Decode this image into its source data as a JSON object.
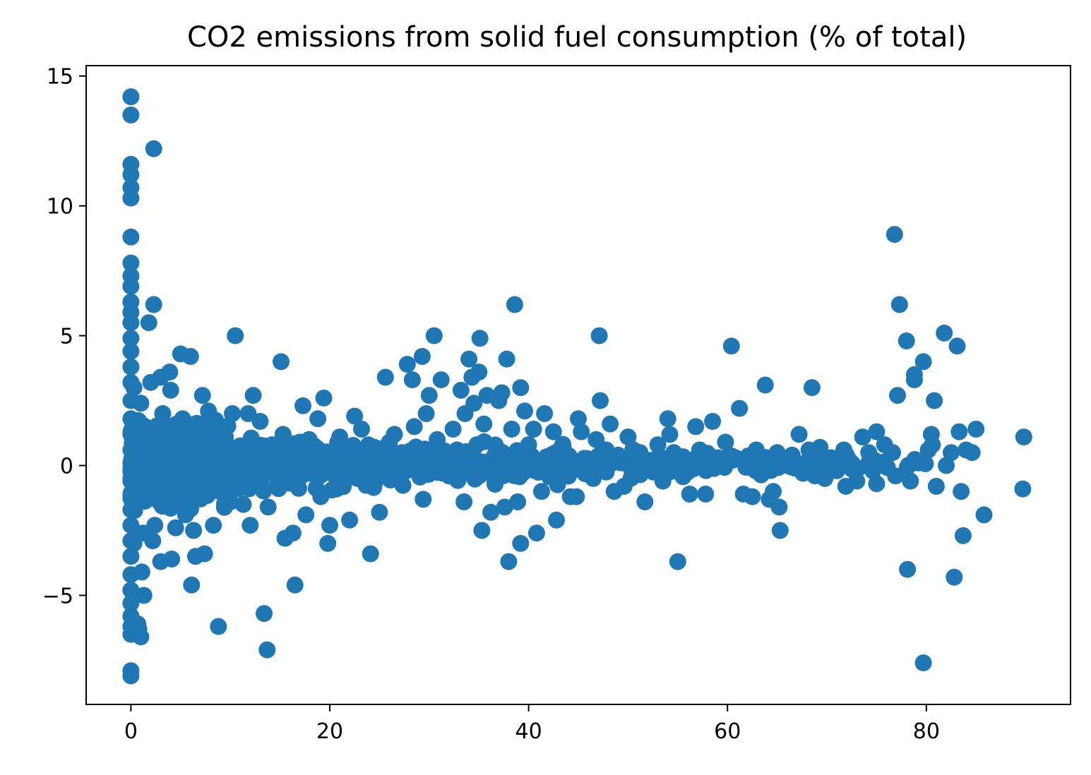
{
  "chart_data": {
    "type": "scatter",
    "title": "CO2 emissions from solid fuel consumption (% of total)",
    "xlabel": "",
    "ylabel": "",
    "xlim": [
      -4.5,
      94.5
    ],
    "ylim": [
      -9.2,
      15.4
    ],
    "x_ticks": [
      0,
      20,
      40,
      60,
      80
    ],
    "y_ticks": [
      15,
      10,
      5,
      0,
      -5
    ],
    "x_tick_labels": [
      "0",
      "20",
      "40",
      "60",
      "80"
    ],
    "y_tick_labels": [
      "15",
      "10",
      "5",
      "0",
      "−5"
    ],
    "grid": false,
    "legend": "none",
    "marker_color": "#1f77b4",
    "series": [
      {
        "points": [
          [
            0,
            14.2
          ],
          [
            0,
            13.5
          ],
          [
            0,
            11.6
          ],
          [
            0,
            11.2
          ],
          [
            0,
            10.7
          ],
          [
            0,
            10.3
          ],
          [
            0,
            8.8
          ],
          [
            0,
            7.8
          ],
          [
            0,
            7.3
          ],
          [
            0,
            6.9
          ],
          [
            0,
            6.3
          ],
          [
            0,
            5.9
          ],
          [
            0,
            5.5
          ],
          [
            0,
            4.9
          ],
          [
            0,
            4.4
          ],
          [
            0,
            3.8
          ],
          [
            0,
            3.2
          ],
          [
            0,
            2.5
          ],
          [
            0,
            1.8
          ],
          [
            0,
            1.2
          ],
          [
            0,
            0.6
          ],
          [
            0,
            0.1
          ],
          [
            0,
            -0.5
          ],
          [
            0,
            -1.1
          ],
          [
            0,
            -1.7
          ],
          [
            0,
            -2.3
          ],
          [
            0,
            -2.9
          ],
          [
            0,
            -3.5
          ],
          [
            0,
            -4.2
          ],
          [
            0,
            -4.8
          ],
          [
            0,
            -5.3
          ],
          [
            0,
            -5.8
          ],
          [
            0,
            -6.2
          ],
          [
            0,
            -6.5
          ],
          [
            0,
            -7.9
          ],
          [
            0,
            -8.1
          ],
          [
            0.3,
            3.0
          ],
          [
            0.3,
            -3.0
          ],
          [
            0.5,
            1.5
          ],
          [
            0.5,
            -1.2
          ],
          [
            0.6,
            0.4
          ],
          [
            0.7,
            -6.1
          ],
          [
            0.8,
            -6.3
          ],
          [
            1.0,
            -6.6
          ],
          [
            1.1,
            -4.1
          ],
          [
            1.3,
            -5.0
          ],
          [
            1.0,
            2.4
          ],
          [
            1.2,
            -2.6
          ],
          [
            1.5,
            0.8
          ],
          [
            1.7,
            -0.4
          ],
          [
            1.8,
            5.5
          ],
          [
            2.3,
            12.2
          ],
          [
            2.3,
            6.2
          ],
          [
            2.0,
            3.2
          ],
          [
            2.2,
            -2.9
          ],
          [
            2.4,
            -2.3
          ],
          [
            2.5,
            1.2
          ],
          [
            2.7,
            -0.9
          ],
          [
            3.0,
            3.4
          ],
          [
            3.0,
            -3.7
          ],
          [
            3.2,
            2.0
          ],
          [
            3.5,
            -1.4
          ],
          [
            3.6,
            0.5
          ],
          [
            3.9,
            3.6
          ],
          [
            4.0,
            2.9
          ],
          [
            4.1,
            -3.6
          ],
          [
            4.2,
            -0.6
          ],
          [
            4.4,
            1.3
          ],
          [
            4.5,
            -2.4
          ],
          [
            5.0,
            4.3
          ],
          [
            5.2,
            1.8
          ],
          [
            5.5,
            -1.9
          ],
          [
            5.8,
            0.9
          ],
          [
            6.0,
            4.2
          ],
          [
            6.1,
            -4.6
          ],
          [
            6.3,
            -2.5
          ],
          [
            6.5,
            -3.5
          ],
          [
            6.8,
            -0.2
          ],
          [
            7.0,
            1.6
          ],
          [
            7.2,
            2.7
          ],
          [
            7.4,
            -3.4
          ],
          [
            7.6,
            -1.0
          ],
          [
            7.8,
            2.1
          ],
          [
            8.0,
            1.3
          ],
          [
            8.3,
            -2.3
          ],
          [
            8.5,
            0.3
          ],
          [
            8.8,
            -6.2
          ],
          [
            9.0,
            -0.8
          ],
          [
            9.5,
            1.1
          ],
          [
            10.0,
            -1.4
          ],
          [
            10.2,
            2.0
          ],
          [
            10.5,
            5.0
          ],
          [
            11.0,
            0.6
          ],
          [
            11.3,
            -1.5
          ],
          [
            11.8,
            2.0
          ],
          [
            12.0,
            -2.3
          ],
          [
            12.3,
            2.7
          ],
          [
            12.7,
            -0.3
          ],
          [
            13.0,
            1.7
          ],
          [
            13.4,
            -5.7
          ],
          [
            13.7,
            -7.1
          ],
          [
            13.8,
            -1.6
          ],
          [
            14.2,
            0.8
          ],
          [
            14.8,
            -0.7
          ],
          [
            15.1,
            4.0
          ],
          [
            15.3,
            1.2
          ],
          [
            15.5,
            -2.8
          ],
          [
            16.0,
            0.2
          ],
          [
            16.3,
            -2.6
          ],
          [
            16.5,
            -4.6
          ],
          [
            17.0,
            0.9
          ],
          [
            17.3,
            2.3
          ],
          [
            17.6,
            -1.9
          ],
          [
            18.0,
            -0.3
          ],
          [
            18.5,
            0.6
          ],
          [
            18.8,
            1.8
          ],
          [
            19.1,
            -1.2
          ],
          [
            19.4,
            2.6
          ],
          [
            19.8,
            -3.0
          ],
          [
            20.0,
            -2.3
          ],
          [
            20.3,
            0.1
          ],
          [
            20.7,
            -0.9
          ],
          [
            21.0,
            1.1
          ],
          [
            21.5,
            0.4
          ],
          [
            22.0,
            -2.1
          ],
          [
            22.5,
            1.9
          ],
          [
            22.8,
            -0.5
          ],
          [
            23.2,
            1.4
          ],
          [
            23.7,
            0.2
          ],
          [
            24.1,
            -3.4
          ],
          [
            24.5,
            0.7
          ],
          [
            25.0,
            -1.8
          ],
          [
            25.6,
            3.4
          ],
          [
            26.0,
            0.9
          ],
          [
            26.5,
            1.2
          ],
          [
            26.9,
            -0.2
          ],
          [
            27.3,
            0.5
          ],
          [
            27.8,
            3.9
          ],
          [
            28.3,
            3.3
          ],
          [
            28.5,
            1.5
          ],
          [
            28.9,
            0.3
          ],
          [
            29.3,
            4.2
          ],
          [
            29.7,
            2.0
          ],
          [
            29.4,
            -1.3
          ],
          [
            30.0,
            2.7
          ],
          [
            30.5,
            5.0
          ],
          [
            30.8,
            1.0
          ],
          [
            31.2,
            3.3
          ],
          [
            31.6,
            0.2
          ],
          [
            32.0,
            -0.4
          ],
          [
            32.4,
            1.4
          ],
          [
            32.8,
            0.6
          ],
          [
            33.2,
            2.9
          ],
          [
            33.5,
            -1.4
          ],
          [
            33.6,
            2.0
          ],
          [
            34.0,
            4.1
          ],
          [
            34.3,
            3.4
          ],
          [
            34.5,
            2.4
          ],
          [
            34.8,
            0.8
          ],
          [
            35.0,
            3.6
          ],
          [
            35.1,
            4.9
          ],
          [
            35.3,
            -2.5
          ],
          [
            35.5,
            1.6
          ],
          [
            35.8,
            2.7
          ],
          [
            36.2,
            -1.8
          ],
          [
            36.6,
            0.4
          ],
          [
            37.0,
            2.5
          ],
          [
            37.3,
            2.8
          ],
          [
            37.6,
            -1.6
          ],
          [
            37.8,
            4.1
          ],
          [
            38.0,
            -3.7
          ],
          [
            38.3,
            1.4
          ],
          [
            38.6,
            6.2
          ],
          [
            38.9,
            -1.4
          ],
          [
            39.2,
            3.0
          ],
          [
            39.2,
            -3.0
          ],
          [
            39.6,
            2.1
          ],
          [
            40.0,
            0.8
          ],
          [
            40.5,
            1.4
          ],
          [
            40.8,
            -2.6
          ],
          [
            41.3,
            -1.0
          ],
          [
            41.6,
            2.0
          ],
          [
            42.0,
            0.3
          ],
          [
            42.5,
            1.3
          ],
          [
            42.8,
            -2.1
          ],
          [
            43.3,
            0.7
          ],
          [
            43.8,
            -0.2
          ],
          [
            44.2,
            -1.2
          ],
          [
            44.8,
            -1.2
          ],
          [
            45.0,
            1.8
          ],
          [
            45.3,
            1.3
          ],
          [
            45.8,
            0.2
          ],
          [
            46.5,
            -0.5
          ],
          [
            46.8,
            1.0
          ],
          [
            47.1,
            5.0
          ],
          [
            47.2,
            2.5
          ],
          [
            47.8,
            0.6
          ],
          [
            48.2,
            1.6
          ],
          [
            48.6,
            -1.0
          ],
          [
            49.0,
            0.4
          ],
          [
            49.6,
            -0.8
          ],
          [
            50.0,
            1.1
          ],
          [
            50.6,
            0.1
          ],
          [
            51.2,
            0.5
          ],
          [
            51.7,
            -1.4
          ],
          [
            52.3,
            0.2
          ],
          [
            53.0,
            0.8
          ],
          [
            53.5,
            -0.6
          ],
          [
            54.0,
            1.8
          ],
          [
            54.2,
            1.2
          ],
          [
            54.6,
            0.5
          ],
          [
            55.0,
            -3.7
          ],
          [
            55.5,
            0.2
          ],
          [
            56.2,
            -1.1
          ],
          [
            56.8,
            1.5
          ],
          [
            57.2,
            0.6
          ],
          [
            57.8,
            -1.1
          ],
          [
            58.5,
            1.7
          ],
          [
            59.0,
            0.3
          ],
          [
            59.8,
            0.9
          ],
          [
            60.4,
            4.6
          ],
          [
            60.8,
            0.3
          ],
          [
            61.2,
            2.2
          ],
          [
            61.6,
            -1.1
          ],
          [
            62.2,
            0.1
          ],
          [
            62.5,
            -1.2
          ],
          [
            62.9,
            0.6
          ],
          [
            63.5,
            -0.3
          ],
          [
            63.8,
            3.1
          ],
          [
            64.2,
            -1.3
          ],
          [
            64.6,
            -1.0
          ],
          [
            65.0,
            0.5
          ],
          [
            65.2,
            -1.6
          ],
          [
            65.3,
            -2.5
          ],
          [
            65.8,
            0.2
          ],
          [
            66.5,
            0.4
          ],
          [
            67.2,
            1.2
          ],
          [
            67.6,
            -0.3
          ],
          [
            68.2,
            0.6
          ],
          [
            68.5,
            3.0
          ],
          [
            68.8,
            -0.4
          ],
          [
            69.3,
            0.7
          ],
          [
            69.8,
            -0.5
          ],
          [
            70.4,
            0.3
          ],
          [
            71.0,
            -0.2
          ],
          [
            71.7,
            0.6
          ],
          [
            71.9,
            -0.8
          ],
          [
            72.5,
            0.1
          ],
          [
            73.0,
            -0.6
          ],
          [
            73.6,
            1.1
          ],
          [
            74.2,
            0.5
          ],
          [
            74.8,
            0.2
          ],
          [
            75.0,
            1.3
          ],
          [
            75.0,
            -0.7
          ],
          [
            75.8,
            0.8
          ],
          [
            76.6,
            0.5
          ],
          [
            76.8,
            8.9
          ],
          [
            76.9,
            -0.4
          ],
          [
            77.1,
            2.7
          ],
          [
            77.3,
            6.2
          ],
          [
            78.0,
            4.8
          ],
          [
            78.1,
            -4.0
          ],
          [
            78.4,
            -0.6
          ],
          [
            78.8,
            3.5
          ],
          [
            78.8,
            3.3
          ],
          [
            79.2,
            0.1
          ],
          [
            79.7,
            4.0
          ],
          [
            79.7,
            -7.6
          ],
          [
            80.2,
            0.6
          ],
          [
            80.5,
            1.2
          ],
          [
            80.6,
            0.8
          ],
          [
            80.8,
            2.5
          ],
          [
            81.0,
            -0.8
          ],
          [
            81.8,
            5.1
          ],
          [
            82.0,
            0.0
          ],
          [
            82.5,
            0.5
          ],
          [
            82.8,
            -4.3
          ],
          [
            83.1,
            4.6
          ],
          [
            83.3,
            1.3
          ],
          [
            83.5,
            -1.0
          ],
          [
            83.7,
            -2.7
          ],
          [
            84.0,
            0.6
          ],
          [
            84.6,
            0.5
          ],
          [
            85.0,
            1.4
          ],
          [
            85.8,
            -1.9
          ],
          [
            89.8,
            1.1
          ],
          [
            89.7,
            -0.9
          ]
        ],
        "dense_band": [
          {
            "x_range": [
              0,
              10
            ],
            "y_range": [
              -2.0,
              2.0
            ],
            "n": 400
          },
          {
            "x_range": [
              10,
              25
            ],
            "y_range": [
              -1.3,
              1.3
            ],
            "n": 260
          },
          {
            "x_range": [
              25,
              45
            ],
            "y_range": [
              -0.9,
              1.0
            ],
            "n": 200
          },
          {
            "x_range": [
              45,
              65
            ],
            "y_range": [
              -0.6,
              0.7
            ],
            "n": 110
          },
          {
            "x_range": [
              65,
              80
            ],
            "y_range": [
              -0.4,
              0.5
            ],
            "n": 50
          }
        ]
      }
    ]
  }
}
